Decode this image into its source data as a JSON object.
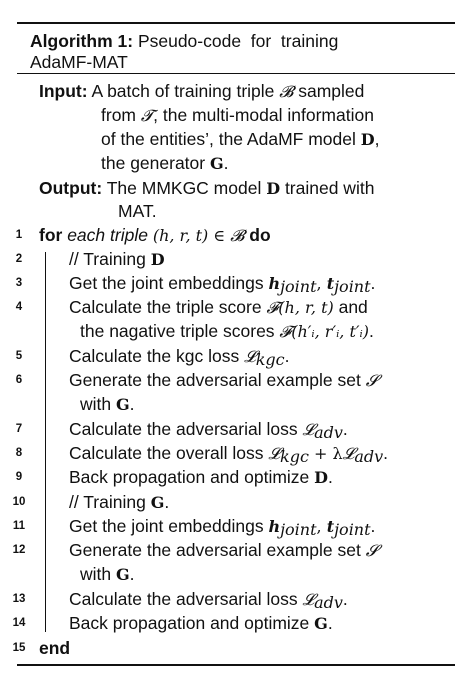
{
  "algorithm": {
    "label": "Algorithm 1:",
    "title_line1": "Pseudo-code  for  training",
    "title_line2": "AdaMF-MAT"
  },
  "input": {
    "label": "Input:",
    "line1a": "A batch of training triple ",
    "sym_B": "𝓑",
    "line1b": " sampled",
    "line2a": "from ",
    "sym_T": "𝓣",
    "line2b": ", the multi-modal information",
    "line3a": "of the entities’, the AdaMF model ",
    "sym_D": "D",
    "line3b": ",",
    "line4a": "the generator ",
    "sym_G": "G",
    "line4b": "."
  },
  "output": {
    "label": "Output:",
    "line1a": "The MMKGC model ",
    "sym_D": "D",
    "line1b": " trained with",
    "line2": "MAT."
  },
  "steps": {
    "s1": {
      "num": "1",
      "kw_for": "for",
      "each": "each triple",
      "tuple": "(h, r, t)",
      "in": " ∈ ",
      "set": "𝓑",
      "kw_do": "do"
    },
    "s2": {
      "num": "2",
      "text": "// Training ",
      "sym": "D"
    },
    "s3": {
      "num": "3",
      "text": "Get the joint embeddings ",
      "h": "h",
      "hsub": "joint",
      "sep": ", ",
      "t": "t",
      "tsub": "joint",
      "end": "."
    },
    "s4": {
      "num": "4",
      "line1a": "Calculate the triple score ",
      "F": "𝓕",
      "tuple": "(h, r, t)",
      "line1b": " and",
      "line2a": "the nagative triple scores ",
      "F2": "𝓕",
      "tuple2": "(h′ᵢ, r′ᵢ, t′ᵢ)",
      "line2b": "."
    },
    "s5": {
      "num": "5",
      "text": "Calculate the kgc loss ",
      "L": "𝓛",
      "sub": "kgc",
      "end": "."
    },
    "s6": {
      "num": "6",
      "line1": "Generate the adversarial example set ",
      "S": "𝓢",
      "line2a": "with ",
      "G": "G",
      "line2b": "."
    },
    "s7": {
      "num": "7",
      "text": "Calculate the adversarial loss ",
      "L": "𝓛",
      "sub": "adv",
      "end": "."
    },
    "s8": {
      "num": "8",
      "text": "Calculate the overall loss ",
      "L1": "𝓛",
      "sub1": "kgc",
      "plus": " + λ",
      "L2": "𝓛",
      "sub2": "adv",
      "end": "."
    },
    "s9": {
      "num": "9",
      "text": "Back propagation and optimize ",
      "sym": "D",
      "end": "."
    },
    "s10": {
      "num": "10",
      "text": "// Training ",
      "sym": "G",
      "end": "."
    },
    "s11": {
      "num": "11",
      "text": "Get the joint embeddings ",
      "h": "h",
      "hsub": "joint",
      "sep": ", ",
      "t": "t",
      "tsub": "joint",
      "end": "."
    },
    "s12": {
      "num": "12",
      "line1": "Generate the adversarial example set ",
      "S": "𝓢",
      "line2a": "with ",
      "G": "G",
      "line2b": "."
    },
    "s13": {
      "num": "13",
      "text": "Calculate the adversarial loss ",
      "L": "𝓛",
      "sub": "adv",
      "end": "."
    },
    "s14": {
      "num": "14",
      "text": "Back propagation and optimize ",
      "sym": "G",
      "end": "."
    },
    "s15": {
      "num": "15",
      "kw_end": "end"
    }
  }
}
